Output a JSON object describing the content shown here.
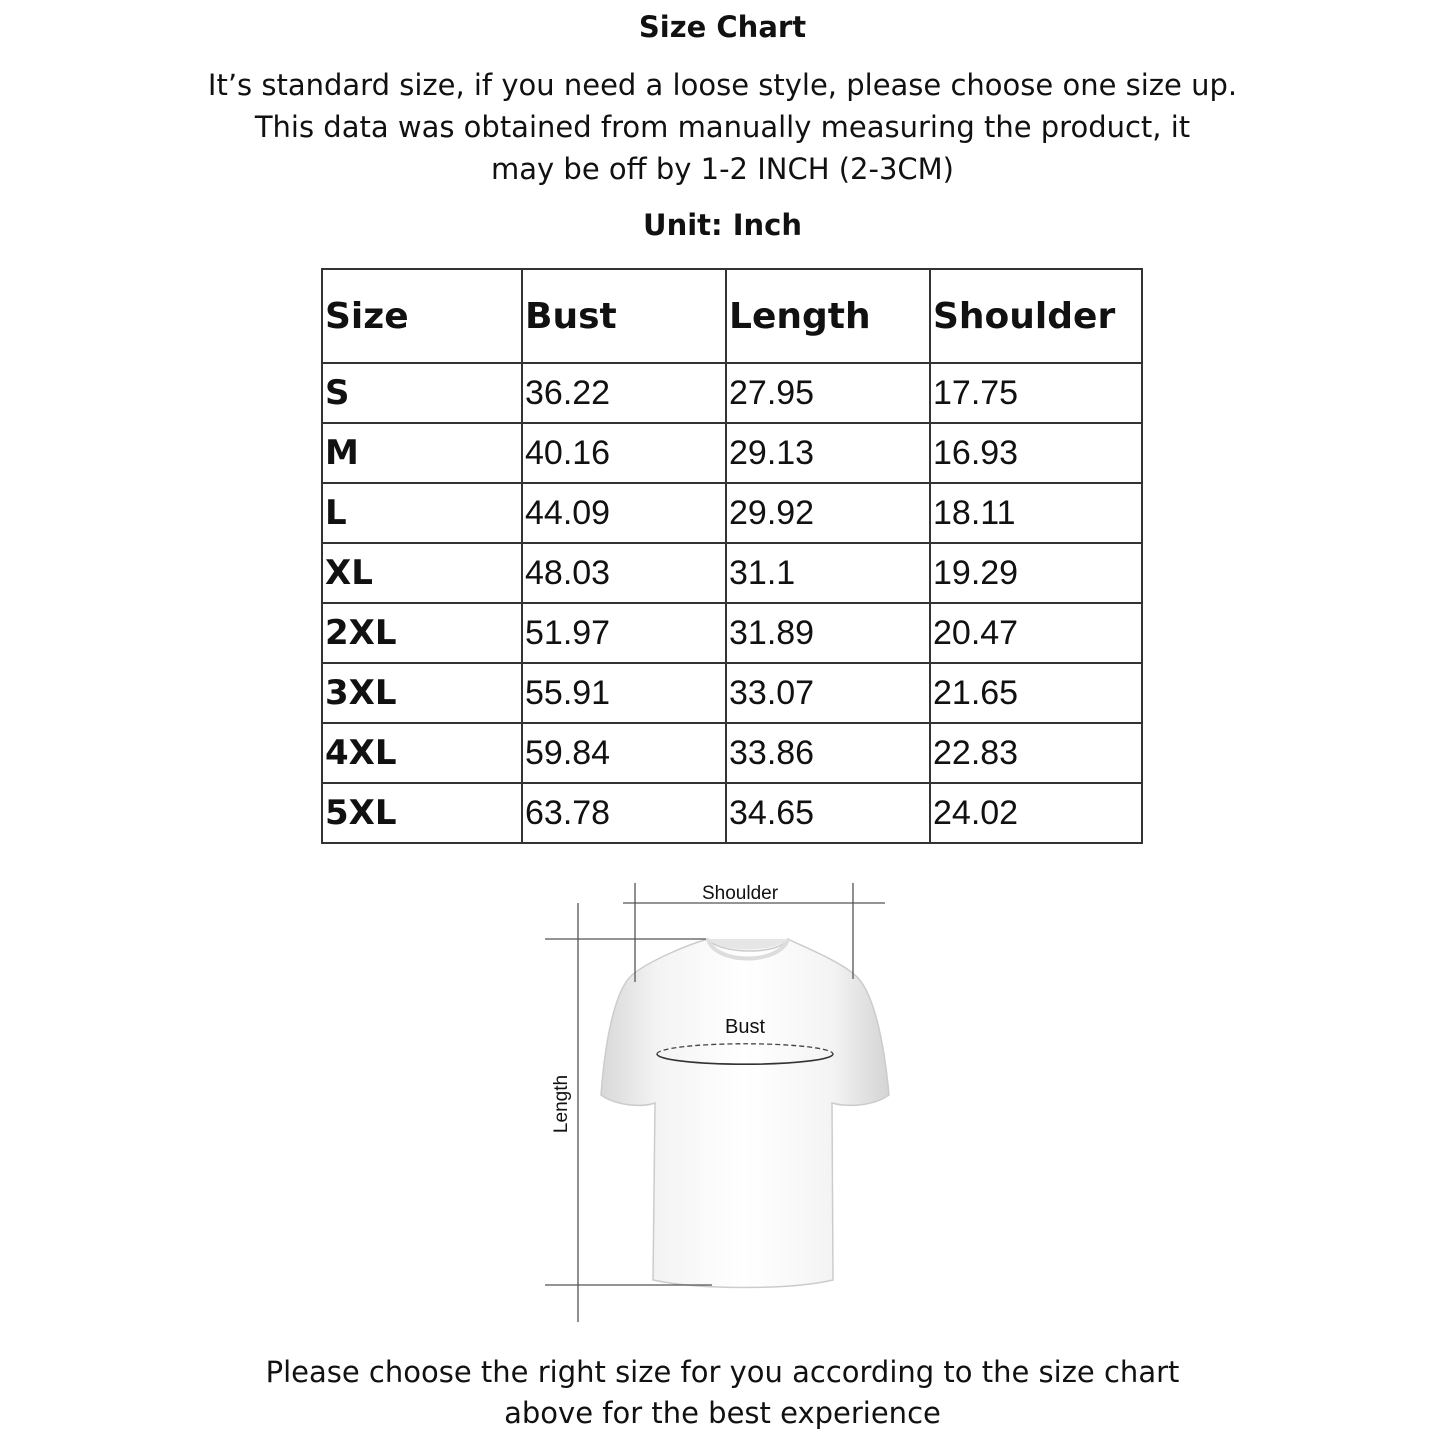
{
  "title": "Size Chart",
  "intro": [
    "It’s standard size, if you need a loose style, please choose one size up.",
    "This data was obtained from manually measuring the product, it",
    "may be off by 1-2 INCH (2-3CM)"
  ],
  "unit_label": "Unit: Inch",
  "table": {
    "headers": [
      "Size",
      "Bust",
      "Length",
      "Shoulder"
    ],
    "rows": [
      [
        "S",
        "36.22",
        "27.95",
        "17.75"
      ],
      [
        "M",
        "40.16",
        "29.13",
        "16.93"
      ],
      [
        "L",
        "44.09",
        "29.92",
        "18.11"
      ],
      [
        "XL",
        "48.03",
        "31.1",
        "19.29"
      ],
      [
        "2XL",
        "51.97",
        "31.89",
        "20.47"
      ],
      [
        "3XL",
        "55.91",
        "33.07",
        "21.65"
      ],
      [
        "4XL",
        "59.84",
        "33.86",
        "22.83"
      ],
      [
        "5XL",
        "63.78",
        "34.65",
        "24.02"
      ]
    ]
  },
  "diagram": {
    "shoulder_label": "Shoulder",
    "bust_label": "Bust",
    "length_label": "Length"
  },
  "footer": [
    "Please choose the right size for you according to the size chart",
    "above for the best experience"
  ]
}
